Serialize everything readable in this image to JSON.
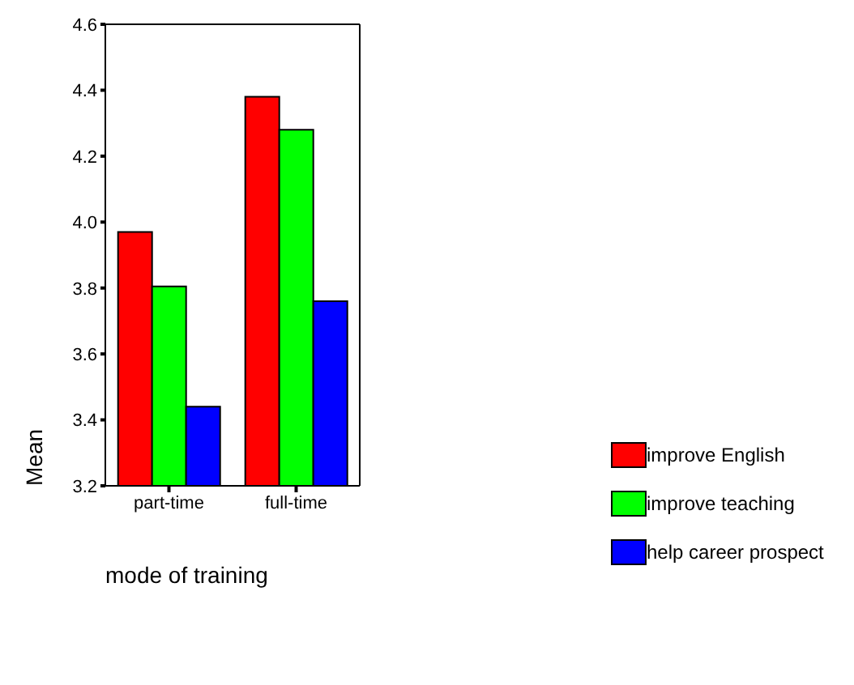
{
  "chart_data": {
    "type": "bar",
    "xlabel": "mode of training",
    "ylabel": "Mean",
    "categories": [
      "part-time",
      "full-time"
    ],
    "series": [
      {
        "name": "improve English",
        "color": "#ff0000",
        "values": [
          3.97,
          4.38
        ]
      },
      {
        "name": "improve teaching",
        "color": "#00ff00",
        "values": [
          3.805,
          4.28
        ]
      },
      {
        "name": "help career prospect",
        "color": "#0000ff",
        "values": [
          3.44,
          3.76
        ]
      }
    ],
    "ylim": [
      3.2,
      4.6
    ],
    "yticks": [
      3.2,
      3.4,
      3.6,
      3.8,
      {
        "value": 4,
        "label": "4.0"
      },
      4.2,
      4.4,
      4.6
    ],
    "grid": false,
    "legend": "right"
  }
}
